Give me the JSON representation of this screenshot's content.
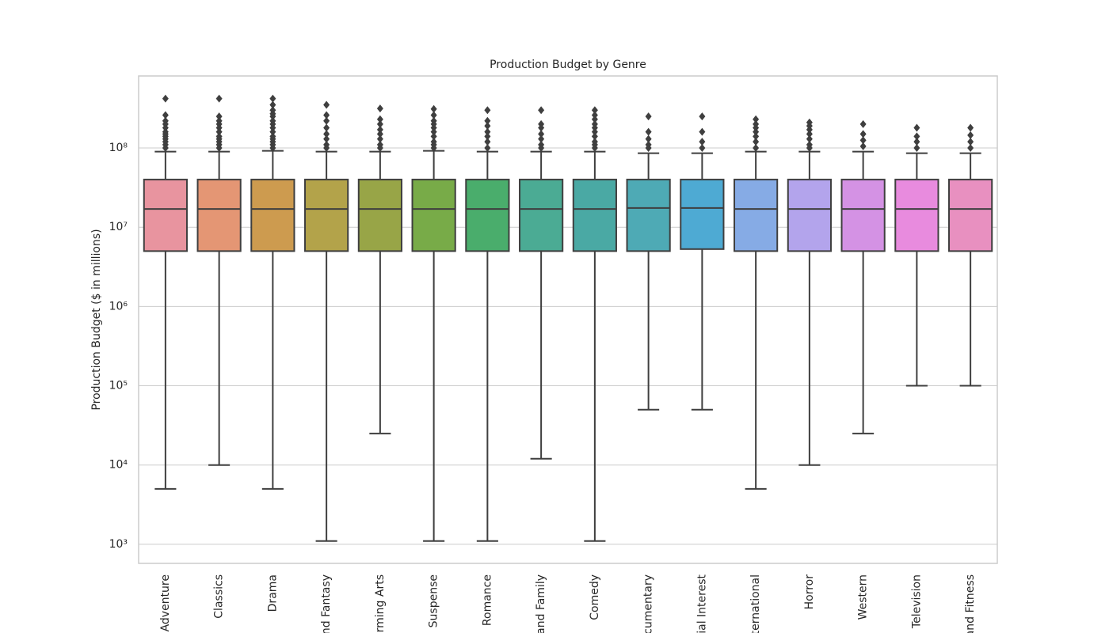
{
  "chart_data": {
    "type": "box",
    "title": "Production Budget by Genre",
    "y_label": "Production Budget ($ in millions)",
    "yscale": "log",
    "grid": true,
    "ylim": [
      575,
      810000000
    ],
    "yticks": [
      {
        "value": 1000,
        "label": "10³"
      },
      {
        "value": 10000,
        "label": "10⁴"
      },
      {
        "value": 100000,
        "label": "10⁵"
      },
      {
        "value": 1000000,
        "label": "10⁶"
      },
      {
        "value": 10000000,
        "label": "10⁷"
      },
      {
        "value": 100000000,
        "label": "10⁸"
      }
    ],
    "categories": [
      "Adventure",
      "Classics",
      "Drama",
      "nd Fantasy",
      "orming Arts",
      "Suspense",
      "Romance",
      "and Family",
      "Comedy",
      "cumentary",
      "cial Interest",
      "nternational",
      "Horror",
      "Western",
      "Television",
      "and Fitness"
    ],
    "boxes": [
      {
        "color": "#e8949f",
        "whislo": 5000,
        "q1": 5000000,
        "median": 17000000,
        "q3": 40000000,
        "whishi": 90000000,
        "fliers": [
          420000000,
          260000000,
          220000000,
          200000000,
          180000000,
          160000000,
          150000000,
          140000000,
          130000000,
          120000000,
          110000000,
          100000000
        ]
      },
      {
        "color": "#e49674",
        "whislo": 10000,
        "q1": 5000000,
        "median": 17000000,
        "q3": 40000000,
        "whishi": 90000000,
        "fliers": [
          420000000,
          250000000,
          220000000,
          200000000,
          180000000,
          160000000,
          140000000,
          130000000,
          120000000,
          110000000,
          100000000
        ]
      },
      {
        "color": "#cd9b4f",
        "whislo": 5000,
        "q1": 5000000,
        "median": 17000000,
        "q3": 40000000,
        "whishi": 92000000,
        "fliers": [
          420000000,
          350000000,
          300000000,
          270000000,
          250000000,
          220000000,
          200000000,
          180000000,
          160000000,
          140000000,
          130000000,
          120000000,
          110000000,
          100000000
        ]
      },
      {
        "color": "#b3a34a",
        "whislo": 1100,
        "q1": 5000000,
        "median": 17000000,
        "q3": 40000000,
        "whishi": 90000000,
        "fliers": [
          350000000,
          260000000,
          220000000,
          180000000,
          150000000,
          130000000,
          110000000,
          100000000
        ]
      },
      {
        "color": "#98a547",
        "whislo": 25000,
        "q1": 5000000,
        "median": 17000000,
        "q3": 40000000,
        "whishi": 90000000,
        "fliers": [
          315000000,
          230000000,
          200000000,
          170000000,
          150000000,
          130000000,
          110000000,
          100000000
        ]
      },
      {
        "color": "#78ab48",
        "whislo": 1100,
        "q1": 5000000,
        "median": 17000000,
        "q3": 40000000,
        "whishi": 92000000,
        "fliers": [
          310000000,
          260000000,
          220000000,
          200000000,
          180000000,
          160000000,
          140000000,
          120000000,
          110000000,
          100000000
        ]
      },
      {
        "color": "#4aad6c",
        "whislo": 1100,
        "q1": 5000000,
        "median": 17000000,
        "q3": 40000000,
        "whishi": 90000000,
        "fliers": [
          300000000,
          220000000,
          190000000,
          160000000,
          140000000,
          120000000,
          100000000
        ]
      },
      {
        "color": "#4bab94",
        "whislo": 12000,
        "q1": 5000000,
        "median": 17000000,
        "q3": 40000000,
        "whishi": 90000000,
        "fliers": [
          300000000,
          200000000,
          180000000,
          150000000,
          130000000,
          110000000,
          100000000
        ]
      },
      {
        "color": "#4aa9a4",
        "whislo": 1100,
        "q1": 5000000,
        "median": 17000000,
        "q3": 40000000,
        "whishi": 90000000,
        "fliers": [
          300000000,
          260000000,
          230000000,
          200000000,
          180000000,
          160000000,
          140000000,
          120000000,
          110000000,
          100000000
        ]
      },
      {
        "color": "#4eaab5",
        "whislo": 50000,
        "q1": 5000000,
        "median": 17500000,
        "q3": 40000000,
        "whishi": 86000000,
        "fliers": [
          250000000,
          160000000,
          130000000,
          110000000,
          100000000
        ]
      },
      {
        "color": "#4eaad3",
        "whislo": 50000,
        "q1": 5300000,
        "median": 17500000,
        "q3": 40000000,
        "whishi": 86000000,
        "fliers": [
          250000000,
          160000000,
          120000000,
          100000000
        ]
      },
      {
        "color": "#86abe5",
        "whislo": 5000,
        "q1": 5000000,
        "median": 17000000,
        "q3": 40000000,
        "whishi": 90000000,
        "fliers": [
          230000000,
          200000000,
          180000000,
          160000000,
          140000000,
          120000000,
          100000000
        ]
      },
      {
        "color": "#b3a4ec",
        "whislo": 10000,
        "q1": 5000000,
        "median": 17000000,
        "q3": 40000000,
        "whishi": 90000000,
        "fliers": [
          210000000,
          190000000,
          170000000,
          150000000,
          130000000,
          110000000,
          100000000
        ]
      },
      {
        "color": "#d492e4",
        "whislo": 25000,
        "q1": 5000000,
        "median": 17000000,
        "q3": 40000000,
        "whishi": 90000000,
        "fliers": [
          200000000,
          150000000,
          125000000,
          105000000
        ]
      },
      {
        "color": "#e88bde",
        "whislo": 100000,
        "q1": 5000000,
        "median": 17000000,
        "q3": 40000000,
        "whishi": 86000000,
        "fliers": [
          180000000,
          140000000,
          120000000,
          100000000
        ]
      },
      {
        "color": "#e890c0",
        "whislo": 100000,
        "q1": 5000000,
        "median": 17000000,
        "q3": 40000000,
        "whishi": 86000000,
        "fliers": [
          180000000,
          145000000,
          120000000,
          100000000
        ]
      }
    ]
  }
}
